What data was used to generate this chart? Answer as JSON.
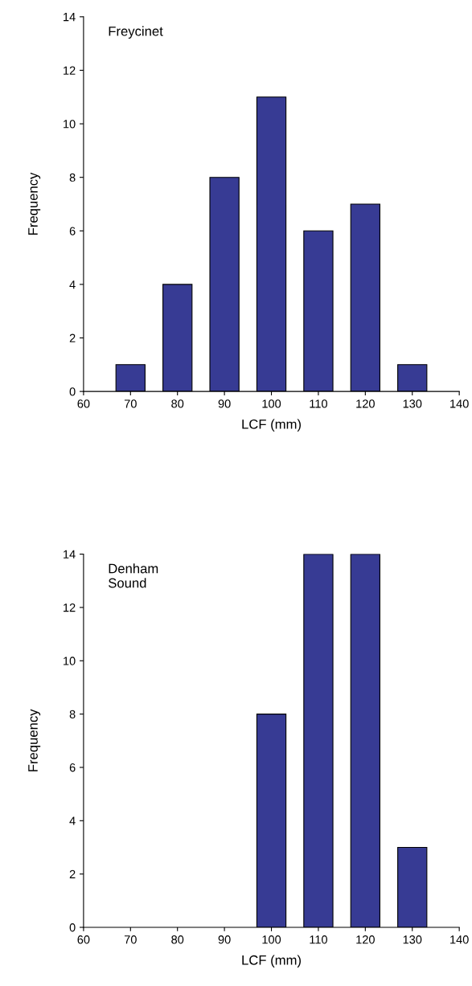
{
  "chart_data": [
    {
      "type": "bar",
      "x": [
        70,
        80,
        90,
        100,
        110,
        120,
        130
      ],
      "values": [
        1,
        4,
        8,
        11,
        6,
        7,
        1
      ],
      "color": "#373b94",
      "xlabel": "LCF (mm)",
      "ylabel": "Frequency",
      "xlim": [
        60,
        140
      ],
      "xticks": [
        60,
        70,
        80,
        90,
        100,
        110,
        120,
        130,
        140
      ],
      "ylim": [
        0,
        14
      ],
      "yticks": [
        0,
        2,
        4,
        6,
        8,
        10,
        12,
        14
      ],
      "annotations": [
        "Freycinet"
      ],
      "grid": false,
      "legend": false
    },
    {
      "type": "bar",
      "x": [
        100,
        110,
        120,
        130
      ],
      "values": [
        8,
        14,
        14,
        3
      ],
      "color": "#373b94",
      "xlabel": "LCF (mm)",
      "ylabel": "Frequency",
      "xlim": [
        60,
        140
      ],
      "xticks": [
        60,
        70,
        80,
        90,
        100,
        110,
        120,
        130,
        140
      ],
      "ylim": [
        0,
        14
      ],
      "yticks": [
        0,
        2,
        4,
        6,
        8,
        10,
        12,
        14
      ],
      "annotations": [
        "Denham\nSound"
      ],
      "grid": false,
      "legend": false
    }
  ]
}
